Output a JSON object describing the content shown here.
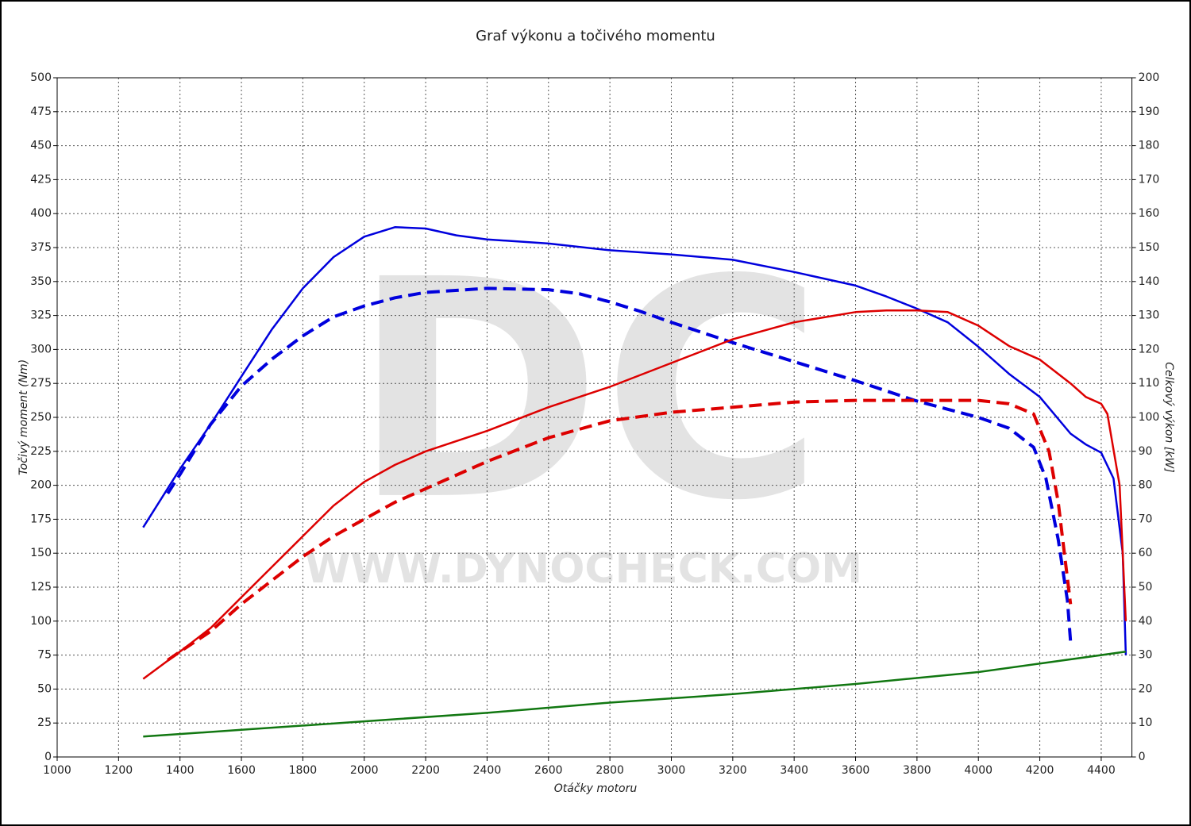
{
  "chart_data": {
    "type": "line",
    "title": "Graf výkonu a točivého momentu",
    "xlabel": "Otáčky motoru",
    "ylabel": "Točivý moment (Nm)",
    "y2label": "Celkový výkon [kW]",
    "watermark": [
      "DC",
      "WWW.DYNOCHECK.COM"
    ],
    "xlim": [
      1000,
      4500
    ],
    "xticks": [
      1000,
      1200,
      1400,
      1600,
      1800,
      2000,
      2200,
      2400,
      2600,
      2800,
      3000,
      3200,
      3400,
      3600,
      3800,
      4000,
      4200,
      4400
    ],
    "ylim": [
      0,
      500
    ],
    "yticks": [
      0,
      25,
      50,
      75,
      100,
      125,
      150,
      175,
      200,
      225,
      250,
      275,
      300,
      325,
      350,
      375,
      400,
      425,
      450,
      475,
      500
    ],
    "y2lim": [
      0,
      200
    ],
    "y2ticks": [
      0,
      10,
      20,
      30,
      40,
      50,
      60,
      70,
      80,
      90,
      100,
      110,
      120,
      130,
      140,
      150,
      160,
      170,
      180,
      190,
      200
    ],
    "grid": true,
    "series": [
      {
        "color": "#0000dd",
        "dashed": false,
        "axis": "y",
        "x": [
          1280,
          1400,
          1500,
          1600,
          1700,
          1800,
          1900,
          2000,
          2100,
          2200,
          2300,
          2400,
          2600,
          2800,
          3000,
          3200,
          3400,
          3600,
          3700,
          3800,
          3900,
          4000,
          4100,
          4200,
          4300,
          4350,
          4400,
          4440,
          4470,
          4480
        ],
        "values": [
          169,
          212,
          245,
          280,
          315,
          345,
          368,
          383,
          390,
          389,
          384,
          381,
          378,
          373,
          370,
          366,
          357,
          347,
          339,
          330,
          320,
          302,
          282,
          265,
          238,
          230,
          224,
          205,
          150,
          75
        ]
      },
      {
        "color": "#0000dd",
        "dashed": true,
        "axis": "y",
        "x": [
          1360,
          1400,
          1500,
          1600,
          1700,
          1800,
          1900,
          2000,
          2100,
          2200,
          2400,
          2600,
          2700,
          2800,
          2900,
          3000,
          3200,
          3400,
          3600,
          3800,
          4000,
          4100,
          4180,
          4220,
          4260,
          4290,
          4300
        ],
        "values": [
          194,
          208,
          245,
          273,
          293,
          310,
          324,
          332,
          338,
          342,
          345,
          344,
          341,
          335,
          328,
          320,
          305,
          291,
          277,
          262,
          250,
          242,
          228,
          205,
          160,
          115,
          85
        ]
      },
      {
        "color": "#dd0000",
        "dashed": false,
        "axis": "y2",
        "x": [
          1280,
          1400,
          1500,
          1600,
          1700,
          1800,
          1900,
          2000,
          2100,
          2200,
          2400,
          2600,
          2800,
          3000,
          3200,
          3400,
          3600,
          3700,
          3800,
          3900,
          4000,
          4100,
          4200,
          4300,
          4350,
          4400,
          4420,
          4460,
          4480
        ],
        "values": [
          23,
          31,
          38,
          47,
          56,
          65,
          74,
          81,
          86,
          90,
          96,
          103,
          109,
          116,
          123,
          128,
          131,
          131.5,
          131.5,
          131,
          127,
          121,
          117,
          110,
          106,
          104,
          101,
          80,
          40
        ]
      },
      {
        "color": "#dd0000",
        "dashed": true,
        "axis": "y2",
        "x": [
          1360,
          1400,
          1500,
          1600,
          1700,
          1800,
          1900,
          2000,
          2100,
          2200,
          2400,
          2600,
          2800,
          3000,
          3200,
          3400,
          3600,
          3800,
          4000,
          4100,
          4180,
          4230,
          4260,
          4280,
          4300
        ],
        "values": [
          28.5,
          31,
          37,
          45,
          52,
          59,
          65,
          70,
          75,
          79,
          87,
          94,
          99,
          101.5,
          103,
          104.5,
          105,
          105,
          105,
          104,
          101,
          90,
          75,
          60,
          45
        ]
      },
      {
        "color": "#117711",
        "dashed": false,
        "axis": "y2",
        "x": [
          1280,
          1600,
          2000,
          2400,
          2800,
          3200,
          3600,
          4000,
          4480
        ],
        "values": [
          6,
          8,
          10.5,
          13,
          16,
          18.5,
          21.5,
          25,
          31
        ]
      }
    ]
  }
}
